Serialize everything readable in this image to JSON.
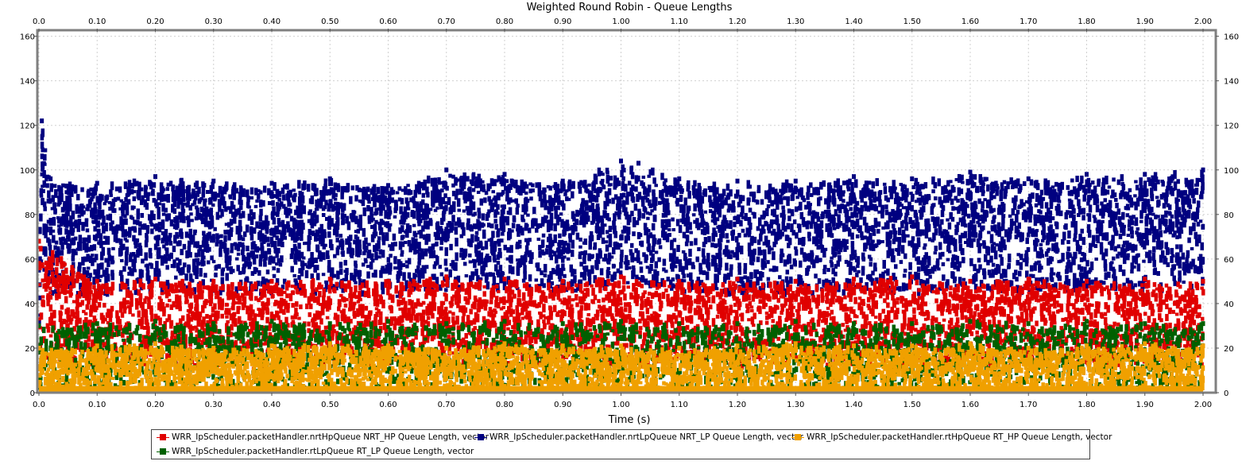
{
  "chart_data": {
    "type": "scatter",
    "title": "Weighted Round Robin - Queue Lengths",
    "xlabel": "Time (s)",
    "ylabel": "",
    "xlim": [
      0.0,
      2.0
    ],
    "ylim": [
      0,
      162
    ],
    "x_ticks": [
      "0.0",
      "0.10",
      "0.20",
      "0.30",
      "0.40",
      "0.50",
      "0.60",
      "0.70",
      "0.80",
      "0.90",
      "1.00",
      "1.10",
      "1.20",
      "1.30",
      "1.40",
      "1.50",
      "1.60",
      "1.70",
      "1.80",
      "1.90",
      "2.00"
    ],
    "y_ticks": [
      "0",
      "20",
      "40",
      "60",
      "80",
      "100",
      "120",
      "140",
      "160"
    ],
    "grid": true,
    "legend_position": "bottom",
    "series": [
      {
        "name": "WRR_IpScheduler.packetHandler.nrtLpQueue NRT_LP Queue Length, vector",
        "color": "#000080",
        "x": [
          0.0,
          0.005,
          0.02,
          0.1,
          0.2,
          0.3,
          0.4,
          0.5,
          0.6,
          0.7,
          0.8,
          0.9,
          1.0,
          1.03,
          1.1,
          1.2,
          1.3,
          1.4,
          1.5,
          1.6,
          1.7,
          1.8,
          1.9,
          2.0
        ],
        "y": [
          55,
          122,
          96,
          94,
          97,
          95,
          94,
          96,
          93,
          100,
          98,
          95,
          104,
          103,
          96,
          95,
          95,
          97,
          96,
          99,
          96,
          98,
          98,
          100
        ]
      },
      {
        "name": "WRR_IpScheduler.packetHandler.nrtHpQueue NRT_HP Queue Length, vector",
        "color": "#e00000",
        "x": [
          0.0,
          0.1,
          0.2,
          0.3,
          0.4,
          0.5,
          0.6,
          0.7,
          0.8,
          0.9,
          1.0,
          1.1,
          1.2,
          1.3,
          1.4,
          1.5,
          1.6,
          1.7,
          1.8,
          1.9,
          2.0
        ],
        "y": [
          68,
          50,
          51,
          50,
          50,
          51,
          50,
          52,
          51,
          50,
          52,
          50,
          51,
          50,
          51,
          52,
          50,
          51,
          50,
          51,
          50
        ]
      },
      {
        "name": "WRR_IpScheduler.packetHandler.rtLpQueue RT_LP Queue Length, vector",
        "color": "#006000",
        "x": [
          0.0,
          0.1,
          0.2,
          0.3,
          0.4,
          0.5,
          0.6,
          0.7,
          0.8,
          0.9,
          1.0,
          1.1,
          1.2,
          1.3,
          1.4,
          1.5,
          1.6,
          1.7,
          1.8,
          1.9,
          2.0
        ],
        "y": [
          30,
          31,
          32,
          31,
          32,
          31,
          32,
          31,
          32,
          31,
          32,
          31,
          31,
          32,
          31,
          31,
          32,
          31,
          32,
          31,
          31
        ]
      },
      {
        "name": "WRR_IpScheduler.packetHandler.rtHpQueue RT_HP Queue Length, vector",
        "color": "#f0a000",
        "x": [
          0.0,
          0.1,
          0.2,
          0.3,
          0.4,
          0.5,
          0.6,
          0.7,
          0.8,
          0.9,
          1.0,
          1.1,
          1.2,
          1.3,
          1.4,
          1.5,
          1.6,
          1.7,
          1.8,
          1.9,
          2.0
        ],
        "y": [
          20,
          21,
          22,
          20,
          21,
          22,
          21,
          20,
          22,
          21,
          21,
          20,
          21,
          22,
          21,
          21,
          22,
          20,
          21,
          22,
          21
        ]
      }
    ]
  }
}
